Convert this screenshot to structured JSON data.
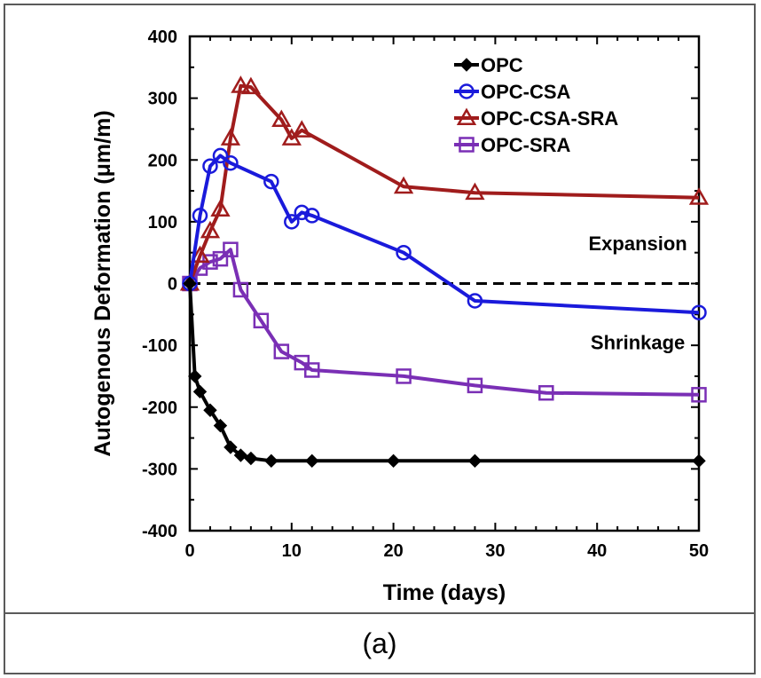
{
  "caption": "(a)",
  "chart_data": {
    "type": "line",
    "xlabel": "Time (days)",
    "ylabel": "Autogenous Deformation (μm/m)",
    "xlim": [
      0,
      50
    ],
    "ylim": [
      -400,
      400
    ],
    "xticks": [
      0,
      10,
      20,
      30,
      40,
      50
    ],
    "yticks": [
      -400,
      -300,
      -200,
      -100,
      0,
      100,
      200,
      300,
      400
    ],
    "grid": false,
    "legend_position": "top-right",
    "reference_line": {
      "y": 0,
      "style": "dashed",
      "color": "#000000"
    },
    "annotations": [
      {
        "text": "Expansion",
        "x": 44,
        "y": 65
      },
      {
        "text": "Shrinkage",
        "x": 44,
        "y": -95
      }
    ],
    "series": [
      {
        "name": "OPC",
        "color": "#000000",
        "marker": "diamond",
        "x": [
          0,
          0.5,
          1,
          2,
          3,
          4,
          5,
          6,
          8,
          12,
          20,
          28,
          50
        ],
        "y": [
          0,
          -150,
          -175,
          -205,
          -230,
          -265,
          -278,
          -283,
          -287,
          -287,
          -287,
          -287,
          -287
        ]
      },
      {
        "name": "OPC-CSA",
        "color": "#1a1adb",
        "marker": "circle",
        "x": [
          0,
          1,
          2,
          3,
          4,
          8,
          10,
          11,
          12,
          21,
          28,
          50
        ],
        "y": [
          0,
          110,
          190,
          207,
          195,
          165,
          100,
          115,
          110,
          50,
          -28,
          -47
        ]
      },
      {
        "name": "OPC-CSA-SRA",
        "color": "#a01c1c",
        "marker": "triangle",
        "x": [
          0,
          1,
          2,
          3,
          4,
          5,
          6,
          9,
          10,
          11,
          21,
          28,
          50
        ],
        "y": [
          0,
          45,
          85,
          120,
          235,
          320,
          318,
          265,
          235,
          248,
          157,
          147,
          139
        ]
      },
      {
        "name": "OPC-SRA",
        "color": "#7a2fb5",
        "marker": "square",
        "x": [
          0,
          1,
          2,
          3,
          4,
          5,
          7,
          9,
          11,
          12,
          21,
          28,
          35,
          50
        ],
        "y": [
          0,
          25,
          35,
          40,
          55,
          -10,
          -60,
          -110,
          -128,
          -140,
          -150,
          -165,
          -177,
          -180
        ]
      }
    ]
  }
}
